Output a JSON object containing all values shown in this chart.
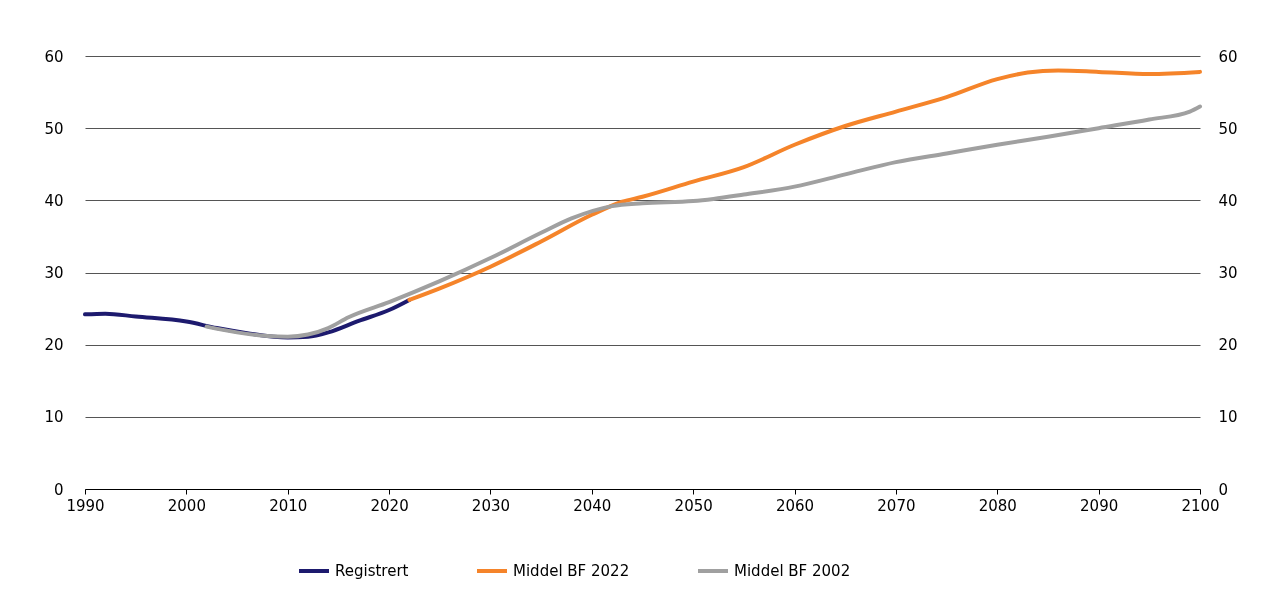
{
  "chart_data": {
    "type": "line",
    "x": [
      1990,
      1992,
      1995,
      2000,
      2003,
      2006,
      2010,
      2012,
      2014,
      2017,
      2020,
      2022
    ],
    "xlim": [
      1990,
      2100
    ],
    "xticks": [
      1990,
      2000,
      2010,
      2020,
      2030,
      2040,
      2050,
      2060,
      2070,
      2080,
      2090,
      2100
    ],
    "ylim": [
      0,
      60
    ],
    "yticks": [
      0,
      10,
      20,
      30,
      40,
      50,
      60
    ],
    "y2lim": [
      0,
      60
    ],
    "y2ticks": [
      0,
      10,
      20,
      30,
      40,
      50,
      60
    ],
    "grid": "y",
    "legend": "bottom",
    "line_style": "solid",
    "series": [
      {
        "name": "Registrert",
        "color": "#1d1a6e",
        "values": [
          24.2,
          24.3,
          23.9,
          23.2,
          22.3,
          21.6,
          21.0,
          21.1,
          21.7,
          23.3,
          24.8,
          26.2
        ]
      },
      {
        "name": "Middel BF 2022",
        "color": "#f5842a",
        "x": [
          2022,
          2025,
          2030,
          2035,
          2040,
          2043,
          2045,
          2050,
          2055,
          2060,
          2065,
          2070,
          2075,
          2080,
          2083,
          2086,
          2090,
          2095,
          2100
        ],
        "values": [
          26.2,
          27.8,
          30.8,
          34.3,
          38.0,
          39.8,
          40.5,
          42.6,
          44.6,
          47.7,
          50.3,
          52.3,
          54.3,
          56.8,
          57.7,
          58.0,
          57.8,
          57.5,
          57.8
        ]
      },
      {
        "name": "Middel BF 2002",
        "color": "#a0a0a0",
        "x": [
          2002,
          2005,
          2008,
          2010,
          2012,
          2014,
          2016,
          2020,
          2025,
          2030,
          2035,
          2038,
          2042,
          2045,
          2050,
          2052,
          2055,
          2060,
          2065,
          2070,
          2075,
          2080,
          2085,
          2090,
          2095,
          2099,
          2100
        ],
        "values": [
          22.5,
          21.7,
          21.2,
          21.1,
          21.4,
          22.3,
          23.8,
          25.9,
          28.8,
          32.0,
          35.5,
          37.5,
          39.2,
          39.6,
          39.9,
          40.2,
          40.8,
          41.9,
          43.6,
          45.3,
          46.5,
          47.7,
          48.8,
          50.0,
          51.2,
          52.3,
          53.0
        ]
      }
    ]
  }
}
